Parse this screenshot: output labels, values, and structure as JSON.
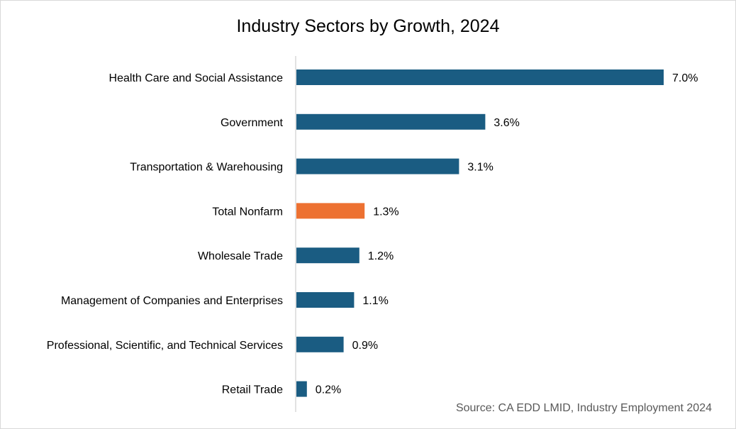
{
  "chart_data": {
    "type": "bar",
    "orientation": "horizontal",
    "title": "Industry Sectors by Growth, 2024",
    "source": "Source: CA EDD LMID, Industry Employment 2024",
    "xlabel": "",
    "ylabel": "",
    "xlim": [
      0,
      7.0
    ],
    "grid": false,
    "value_suffix": "%",
    "categories": [
      "Health Care and Social Assistance",
      "Government",
      "Transportation & Warehousing",
      "Total Nonfarm",
      "Wholesale Trade",
      "Management of Companies and Enterprises",
      "Professional, Scientific, and Technical Services",
      "Retail Trade"
    ],
    "values": [
      7.0,
      3.6,
      3.1,
      1.3,
      1.2,
      1.1,
      0.9,
      0.2
    ],
    "value_labels": [
      "7.0%",
      "3.6%",
      "3.1%",
      "1.3%",
      "1.2%",
      "1.1%",
      "0.9%",
      "0.2%"
    ],
    "highlight_category": "Total Nonfarm",
    "colors": {
      "default_bar": "#1a5c82",
      "highlight_bar": "#ed7131",
      "axis_line": "#d9d9d9"
    }
  }
}
